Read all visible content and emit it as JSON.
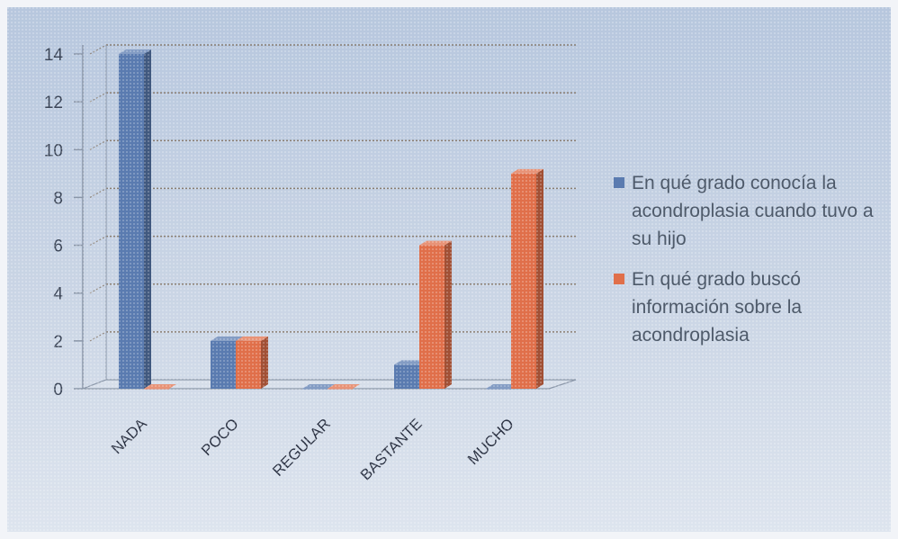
{
  "chart_data": {
    "type": "bar",
    "categories": [
      "NADA",
      "POCO",
      "REGULAR",
      "BASTANTE",
      "MUCHO"
    ],
    "series": [
      {
        "name": "En qué grado conocía la acondroplasia cuando tuvo a su hijo",
        "color": "#5a7bb0",
        "values": [
          14,
          2,
          0,
          1,
          0
        ]
      },
      {
        "name": "En qué grado buscó información sobre la acondroplasia",
        "color": "#e06f4a",
        "values": [
          0,
          2,
          0,
          6,
          9
        ]
      }
    ],
    "yticks": [
      "0",
      "2",
      "4",
      "6",
      "8",
      "10",
      "12",
      "14"
    ],
    "ylim": [
      0,
      14
    ],
    "title": "",
    "xlabel": "",
    "ylabel": "",
    "grid": true,
    "legend_position": "right",
    "three_d": true
  }
}
